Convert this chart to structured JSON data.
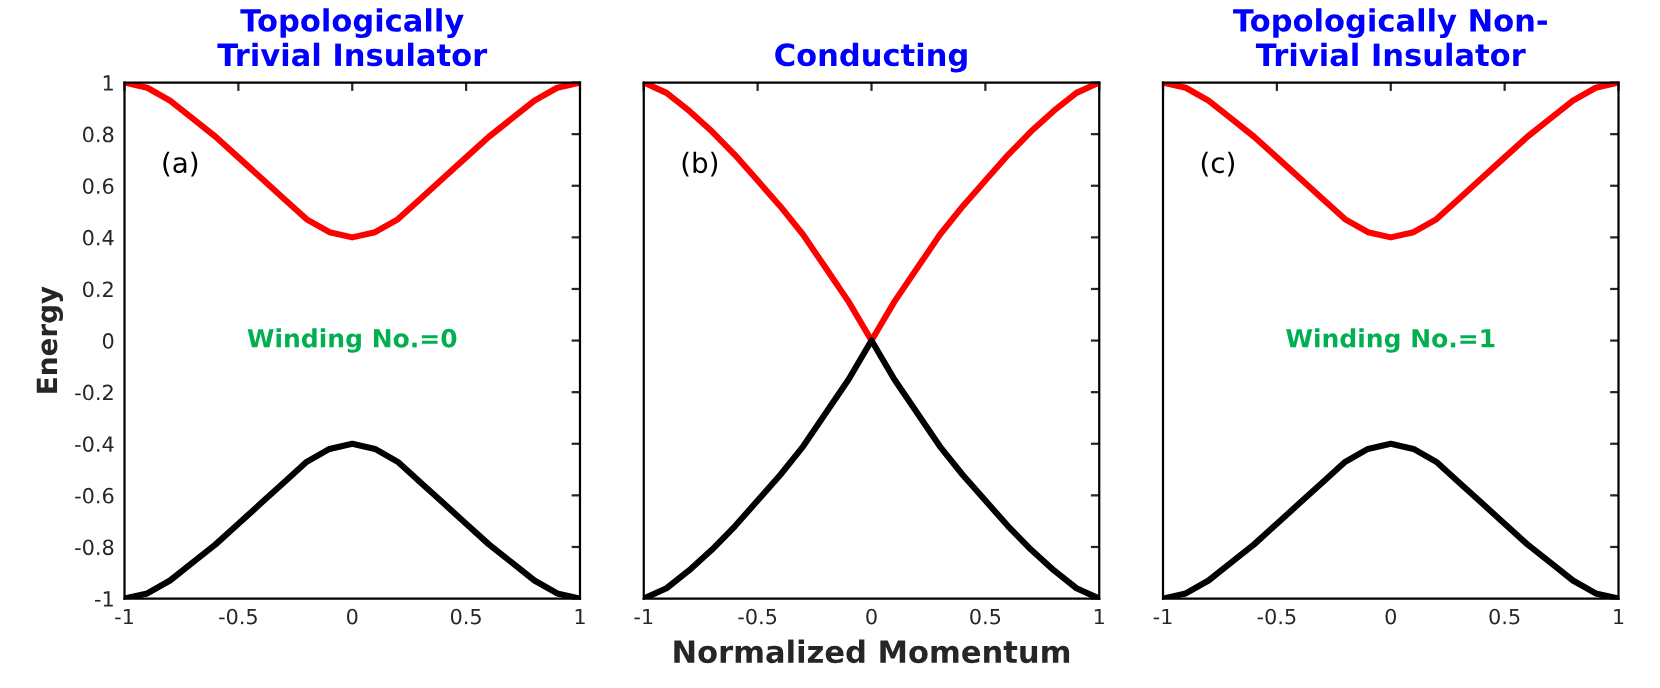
{
  "chart_data": [
    {
      "type": "line",
      "title": "Topologically\nTrivial Insulator",
      "ylabel": "Energy",
      "annotations": [
        "(a)",
        "Winding No.=0"
      ],
      "x": [
        -1,
        -0.9,
        -0.8,
        -0.7,
        -0.6,
        -0.5,
        -0.4,
        -0.3,
        -0.2,
        -0.1,
        0,
        0.1,
        0.2,
        0.3,
        0.4,
        0.5,
        0.6,
        0.7,
        0.8,
        0.9,
        1
      ],
      "series": [
        {
          "color": "#ff0000",
          "values": [
            1,
            0.98,
            0.93,
            0.86,
            0.79,
            0.71,
            0.63,
            0.55,
            0.47,
            0.42,
            0.4,
            0.42,
            0.47,
            0.55,
            0.63,
            0.71,
            0.79,
            0.86,
            0.93,
            0.98,
            1
          ]
        },
        {
          "color": "#000000",
          "values": [
            -1,
            -0.98,
            -0.93,
            -0.86,
            -0.79,
            -0.71,
            -0.63,
            -0.55,
            -0.47,
            -0.42,
            -0.4,
            -0.42,
            -0.47,
            -0.55,
            -0.63,
            -0.71,
            -0.79,
            -0.86,
            -0.93,
            -0.98,
            -1
          ]
        }
      ],
      "xlim": [
        -1,
        1
      ],
      "ylim": [
        -1,
        1
      ],
      "xticks": [
        -1,
        -0.5,
        0,
        0.5,
        1
      ],
      "yticks": [
        -1,
        -0.8,
        -0.6,
        -0.4,
        -0.2,
        0,
        0.2,
        0.4,
        0.6,
        0.8,
        1
      ],
      "grid": false,
      "line_style": "solid"
    },
    {
      "type": "line",
      "title": "Conducting",
      "xlabel": "Normalized Momentum",
      "annotations": [
        "(b)"
      ],
      "x": [
        -1,
        -0.9,
        -0.8,
        -0.7,
        -0.6,
        -0.5,
        -0.4,
        -0.3,
        -0.2,
        -0.1,
        0,
        0.1,
        0.2,
        0.3,
        0.4,
        0.5,
        0.6,
        0.7,
        0.8,
        0.9,
        1
      ],
      "series": [
        {
          "color": "#ff0000",
          "values": [
            1,
            0.96,
            0.89,
            0.81,
            0.72,
            0.62,
            0.52,
            0.41,
            0.28,
            0.15,
            0,
            0.15,
            0.28,
            0.41,
            0.52,
            0.62,
            0.72,
            0.81,
            0.89,
            0.96,
            1
          ]
        },
        {
          "color": "#000000",
          "values": [
            -1,
            -0.96,
            -0.89,
            -0.81,
            -0.72,
            -0.62,
            -0.52,
            -0.41,
            -0.28,
            -0.15,
            0,
            -0.15,
            -0.28,
            -0.41,
            -0.52,
            -0.62,
            -0.72,
            -0.81,
            -0.89,
            -0.96,
            -1
          ]
        }
      ],
      "xlim": [
        -1,
        1
      ],
      "ylim": [
        -1,
        1
      ],
      "xticks": [
        -1,
        -0.5,
        0,
        0.5,
        1
      ],
      "yticks": [
        -1,
        -0.8,
        -0.6,
        -0.4,
        -0.2,
        0,
        0.2,
        0.4,
        0.6,
        0.8,
        1
      ],
      "tick_labels": "x",
      "grid": false,
      "line_style": "solid"
    },
    {
      "type": "line",
      "title": "Topologically Non-\nTrivial Insulator",
      "annotations": [
        "(c)",
        "Winding No.=1"
      ],
      "x": [
        -1,
        -0.9,
        -0.8,
        -0.7,
        -0.6,
        -0.5,
        -0.4,
        -0.3,
        -0.2,
        -0.1,
        0,
        0.1,
        0.2,
        0.3,
        0.4,
        0.5,
        0.6,
        0.7,
        0.8,
        0.9,
        1
      ],
      "series": [
        {
          "color": "#ff0000",
          "values": [
            1,
            0.98,
            0.93,
            0.86,
            0.79,
            0.71,
            0.63,
            0.55,
            0.47,
            0.42,
            0.4,
            0.42,
            0.47,
            0.55,
            0.63,
            0.71,
            0.79,
            0.86,
            0.93,
            0.98,
            1
          ]
        },
        {
          "color": "#000000",
          "values": [
            -1,
            -0.98,
            -0.93,
            -0.86,
            -0.79,
            -0.71,
            -0.63,
            -0.55,
            -0.47,
            -0.42,
            -0.4,
            -0.42,
            -0.47,
            -0.55,
            -0.63,
            -0.71,
            -0.79,
            -0.86,
            -0.93,
            -0.98,
            -1
          ]
        }
      ],
      "xlim": [
        -1,
        1
      ],
      "ylim": [
        -1,
        1
      ],
      "xticks": [
        -1,
        -0.5,
        0,
        0.5,
        1
      ],
      "yticks": [
        -1,
        -0.8,
        -0.6,
        -0.4,
        -0.2,
        0,
        0.2,
        0.4,
        0.6,
        0.8,
        1
      ],
      "tick_labels": "x",
      "grid": false,
      "line_style": "solid"
    }
  ]
}
